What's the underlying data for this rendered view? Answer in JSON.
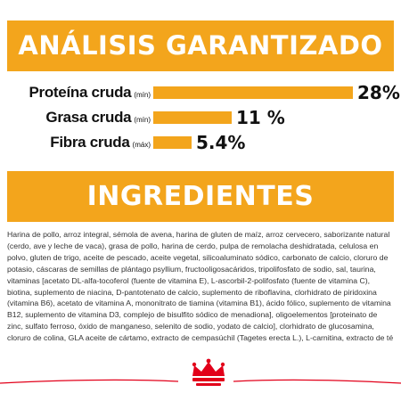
{
  "analysis": {
    "title": "ANÁLISIS GARANTIZADO",
    "rows": [
      {
        "name": "Proteína cruda",
        "qualifier": "(mín)",
        "value": "28%",
        "fraction": 1.0
      },
      {
        "name": "Grasa cruda",
        "qualifier": "(mín)",
        "value": "11 %",
        "fraction": 0.393
      },
      {
        "name": "Fibra cruda",
        "qualifier": "(máx)",
        "value": "5.4%",
        "fraction": 0.193
      }
    ]
  },
  "ingredients": {
    "title": "INGREDIENTES",
    "text": "Harina de pollo, arroz integral, sémola de avena, harina de gluten de maíz, arroz cervecero, saborizante natural (cerdo, ave y leche de vaca), grasa de pollo, harina de cerdo, pulpa de remolacha deshidratada, celulosa en polvo, gluten de trigo, aceite de pescado, aceite vegetal, silicoaluminato sódico, carbonato de calcio, cloruro de potasio, cáscaras de semillas de plántago psyllium, fructooligosacáridos, tripolifosfato de sodio, sal, taurina, vitaminas [acetato DL-alfa-tocoferol (fuente de vitamina E), L-ascorbil-2-polifosfato (fuente de vitamina C), biotina, suplemento de niacina, D-pantotenato de calcio, suplemento de riboflavina, clorhidrato de piridoxina (vitamina B6), acetato de vitamina A, mononitrato de tiamina (vitamina B1), ácido fólico, suplemento de vitamina B12, suplemento de vitamina D3, complejo de bisulfito sódico de menadiona], oligoelementos [proteinato de zinc, sulfato ferroso, óxido de manganeso, selenito de sodio, yodato de calcio], clorhidrato de glucosamina, cloruro de colina, GLA aceite de cártamo, extracto de cempasúchil (Tagetes erecta L.), L-carnitina, extracto de té verde, fosfato de monocalcio, sulfato de condroitina, extracto de romero, conservado con mezcla de tocoferoles y ácido cítrico."
  },
  "colors": {
    "accent": "#f3a51c",
    "brand_red": "#e2001a"
  },
  "icons": {
    "brand": "crown-logo-icon"
  }
}
